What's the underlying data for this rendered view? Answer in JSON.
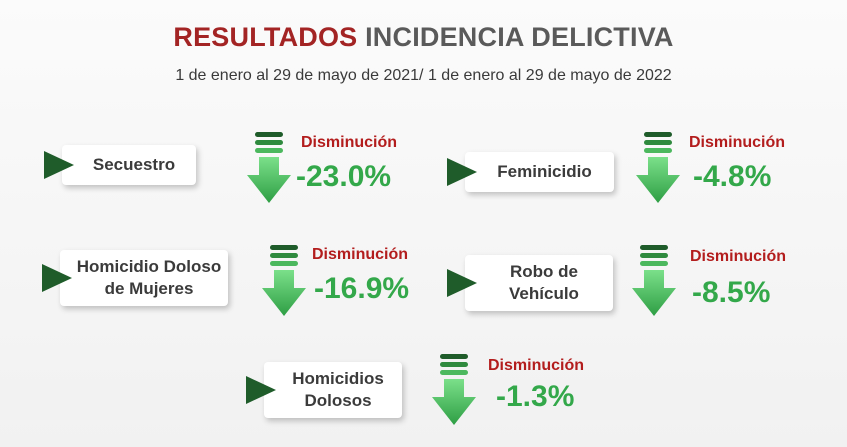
{
  "header": {
    "title_part1": "RESULTADOS",
    "title_part2": "INCIDENCIA DELICTIVA",
    "subtitle": "1 de enero al 29 de mayo de 2021/ 1 de enero al 29 de mayo de 2022"
  },
  "colors": {
    "title_red": "#a32424",
    "label_red": "#b31d1d",
    "value_green": "#33a84a",
    "arrow_dark": "#1f5c2a"
  },
  "items": [
    {
      "name": "Secuestro",
      "status": "Disminución",
      "value": "-23.0%"
    },
    {
      "name": "Feminicidio",
      "status": "Disminución",
      "value": "-4.8%"
    },
    {
      "name_line1": "Homicidio Doloso",
      "name_line2": "de Mujeres",
      "status": "Disminución",
      "value": "-16.9%"
    },
    {
      "name_line1": "Robo de",
      "name_line2": "Vehículo",
      "status": "Disminución",
      "value": "-8.5%"
    },
    {
      "name_line1": "Homicidios",
      "name_line2": "Dolosos",
      "status": "Disminución",
      "value": "-1.3%"
    }
  ]
}
